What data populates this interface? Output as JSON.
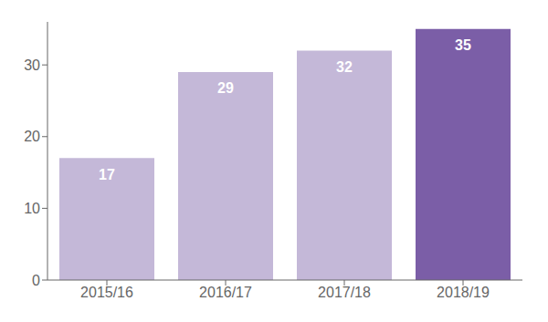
{
  "chart_data": {
    "type": "bar",
    "categories": [
      "2015/16",
      "2016/17",
      "2017/18",
      "2018/19"
    ],
    "values": [
      17,
      29,
      32,
      35
    ],
    "colors": [
      "#c4b8d8",
      "#c4b8d8",
      "#c4b8d8",
      "#7b5ea7"
    ],
    "ylim": [
      0,
      36
    ],
    "yticks": [
      0,
      10,
      20,
      30
    ],
    "grid": false,
    "data_labels": true
  }
}
